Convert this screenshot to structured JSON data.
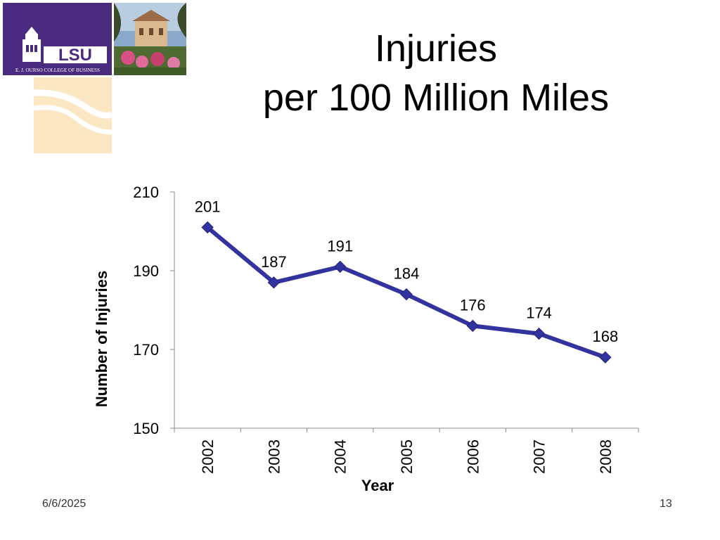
{
  "header": {
    "logo_text": "LSU",
    "logo_subtext": "E. J. OURSO COLLEGE OF BUSINESS",
    "title_line1": "Injuries",
    "title_line2": "per 100 Million Miles"
  },
  "footer": {
    "date": "6/6/2025",
    "page_number": "13"
  },
  "colors": {
    "series": "#3333a0",
    "logo_bg": "#4b2b7f",
    "deco_bg": "#fbe8c2"
  },
  "chart_data": {
    "type": "line",
    "title": "Injuries per 100 Million Miles",
    "xlabel": "Year",
    "ylabel": "Number of Injuries",
    "categories": [
      "2002",
      "2003",
      "2004",
      "2005",
      "2006",
      "2007",
      "2008"
    ],
    "series": [
      {
        "name": "Injuries",
        "values": [
          201,
          187,
          191,
          184,
          176,
          174,
          168
        ]
      }
    ],
    "ylim": [
      150,
      210
    ],
    "yticks": [
      150,
      170,
      190,
      210
    ],
    "grid": false,
    "data_labels": true
  }
}
